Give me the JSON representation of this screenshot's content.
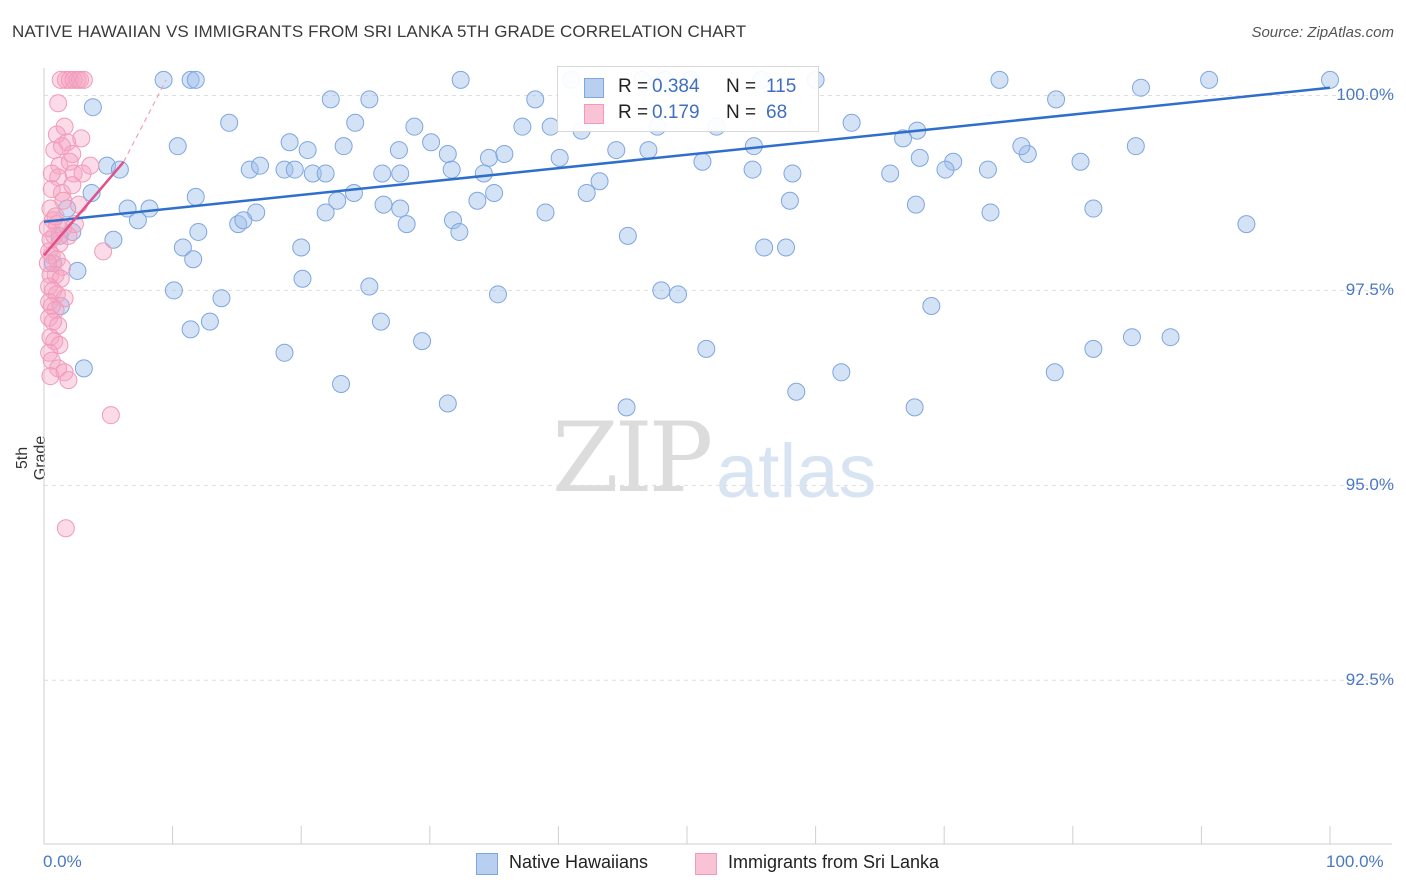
{
  "chart_data": {
    "type": "scatter",
    "title": "NATIVE HAWAIIAN VS IMMIGRANTS FROM SRI LANKA 5TH GRADE CORRELATION CHART",
    "source": "Source: ZipAtlas.com",
    "xlabel": "",
    "ylabel": "5th Grade",
    "xlim": [
      0,
      100
    ],
    "ylim": [
      90.4,
      100.25
    ],
    "y_ticks": [
      {
        "value": 100.0,
        "label": "100.0%"
      },
      {
        "value": 97.5,
        "label": "97.5%"
      },
      {
        "value": 95.0,
        "label": "95.0%"
      },
      {
        "value": 92.5,
        "label": "92.5%"
      }
    ],
    "x_tick_labels": {
      "left": "0.0%",
      "right": "100.0%"
    },
    "grid": true,
    "legend": {
      "position": "top-center",
      "entries": [
        {
          "name": "Native Hawaiians",
          "r_label": "R =",
          "r": "0.384",
          "n_label": "N =",
          "n": "115"
        },
        {
          "name": "Immigrants from Sri Lanka",
          "r_label": "R =",
          "r": "0.179",
          "n_label": "N =",
          "n": "68"
        }
      ]
    },
    "watermark": {
      "zip": "ZIP",
      "atlas": "atlas"
    },
    "series": [
      {
        "name": "Native Hawaiians",
        "color": "#7ea6e0",
        "line_color": "#2f6fcc",
        "trend": {
          "x": [
            0,
            100
          ],
          "y": [
            98.38,
            100.1
          ]
        },
        "points": [
          [
            9.3,
            100.2
          ],
          [
            11.4,
            100.2
          ],
          [
            11.8,
            100.2
          ],
          [
            32.4,
            100.2
          ],
          [
            41.0,
            100.2
          ],
          [
            46.5,
            100.2
          ],
          [
            50.3,
            100.2
          ],
          [
            55.8,
            100.2
          ],
          [
            60.0,
            100.2
          ],
          [
            74.3,
            100.2
          ],
          [
            90.6,
            100.2
          ],
          [
            100.0,
            100.2
          ],
          [
            48.3,
            100.2
          ],
          [
            3.8,
            99.85
          ],
          [
            22.3,
            99.95
          ],
          [
            25.3,
            99.95
          ],
          [
            38.2,
            99.95
          ],
          [
            78.7,
            99.95
          ],
          [
            85.3,
            100.1
          ],
          [
            14.4,
            99.65
          ],
          [
            24.2,
            99.65
          ],
          [
            28.8,
            99.6
          ],
          [
            37.2,
            99.6
          ],
          [
            39.4,
            99.6
          ],
          [
            41.8,
            99.55
          ],
          [
            47.7,
            99.6
          ],
          [
            52.3,
            99.6
          ],
          [
            62.8,
            99.65
          ],
          [
            67.9,
            99.55
          ],
          [
            10.4,
            99.35
          ],
          [
            19.1,
            99.4
          ],
          [
            20.5,
            99.3
          ],
          [
            23.3,
            99.35
          ],
          [
            27.6,
            99.3
          ],
          [
            30.1,
            99.4
          ],
          [
            31.4,
            99.25
          ],
          [
            34.6,
            99.2
          ],
          [
            35.8,
            99.25
          ],
          [
            40.1,
            99.2
          ],
          [
            44.5,
            99.3
          ],
          [
            47.0,
            99.3
          ],
          [
            51.2,
            99.15
          ],
          [
            55.2,
            99.35
          ],
          [
            66.8,
            99.45
          ],
          [
            68.1,
            99.2
          ],
          [
            70.7,
            99.15
          ],
          [
            76.5,
            99.25
          ],
          [
            76.0,
            99.35
          ],
          [
            84.9,
            99.35
          ],
          [
            80.6,
            99.15
          ],
          [
            4.9,
            99.1
          ],
          [
            5.9,
            99.05
          ],
          [
            16.0,
            99.05
          ],
          [
            16.8,
            99.1
          ],
          [
            18.7,
            99.05
          ],
          [
            19.5,
            99.05
          ],
          [
            20.9,
            99.0
          ],
          [
            21.9,
            99.0
          ],
          [
            26.3,
            99.0
          ],
          [
            27.7,
            99.0
          ],
          [
            31.7,
            99.05
          ],
          [
            34.2,
            99.0
          ],
          [
            43.2,
            98.9
          ],
          [
            55.1,
            99.05
          ],
          [
            58.2,
            99.0
          ],
          [
            65.8,
            99.0
          ],
          [
            70.1,
            99.05
          ],
          [
            73.4,
            99.05
          ],
          [
            3.7,
            98.75
          ],
          [
            11.8,
            98.7
          ],
          [
            16.5,
            98.5
          ],
          [
            22.8,
            98.65
          ],
          [
            24.1,
            98.75
          ],
          [
            26.4,
            98.6
          ],
          [
            33.7,
            98.65
          ],
          [
            35.0,
            98.75
          ],
          [
            42.2,
            98.75
          ],
          [
            58.0,
            98.65
          ],
          [
            67.8,
            98.6
          ],
          [
            73.6,
            98.5
          ],
          [
            81.6,
            98.55
          ],
          [
            1.8,
            98.55
          ],
          [
            2.2,
            98.25
          ],
          [
            6.5,
            98.55
          ],
          [
            8.2,
            98.55
          ],
          [
            7.3,
            98.4
          ],
          [
            12.0,
            98.25
          ],
          [
            15.1,
            98.35
          ],
          [
            15.5,
            98.4
          ],
          [
            21.9,
            98.5
          ],
          [
            27.7,
            98.55
          ],
          [
            28.2,
            98.35
          ],
          [
            31.8,
            98.4
          ],
          [
            32.3,
            98.25
          ],
          [
            39.0,
            98.5
          ],
          [
            1.2,
            98.2
          ],
          [
            5.4,
            98.15
          ],
          [
            10.8,
            98.05
          ],
          [
            11.6,
            97.9
          ],
          [
            20.0,
            98.05
          ],
          [
            45.4,
            98.2
          ],
          [
            56.0,
            98.05
          ],
          [
            57.7,
            98.05
          ],
          [
            0.7,
            97.85
          ],
          [
            2.6,
            97.75
          ],
          [
            10.1,
            97.5
          ],
          [
            20.1,
            97.65
          ],
          [
            25.3,
            97.55
          ],
          [
            35.3,
            97.45
          ],
          [
            48.0,
            97.5
          ],
          [
            49.3,
            97.45
          ],
          [
            69.0,
            97.3
          ],
          [
            93.5,
            98.35
          ],
          [
            1.3,
            97.3
          ],
          [
            13.8,
            97.4
          ],
          [
            11.4,
            97.0
          ],
          [
            12.9,
            97.1
          ],
          [
            26.2,
            97.1
          ],
          [
            29.4,
            96.85
          ],
          [
            51.5,
            96.75
          ],
          [
            81.6,
            96.75
          ],
          [
            67.7,
            96.0
          ],
          [
            3.1,
            96.5
          ],
          [
            23.1,
            96.3
          ],
          [
            31.4,
            96.05
          ],
          [
            58.5,
            96.2
          ],
          [
            78.6,
            96.45
          ],
          [
            62.0,
            96.45
          ],
          [
            18.7,
            96.7
          ],
          [
            87.6,
            96.9
          ],
          [
            84.6,
            96.9
          ],
          [
            45.3,
            96.0
          ]
        ]
      },
      {
        "name": "Immigrants from Sri Lanka",
        "color": "#f29ab8",
        "line_color": "#e0508a",
        "trend": {
          "x": [
            0,
            6.2
          ],
          "y": [
            97.95,
            99.15
          ]
        },
        "trend_ext": {
          "x": [
            6.2,
            9.5
          ],
          "y": [
            99.15,
            100.2
          ]
        },
        "points": [
          [
            1.3,
            100.2
          ],
          [
            1.7,
            100.2
          ],
          [
            2.0,
            100.2
          ],
          [
            2.3,
            100.2
          ],
          [
            2.6,
            100.2
          ],
          [
            2.8,
            100.2
          ],
          [
            3.1,
            100.2
          ],
          [
            1.1,
            99.9
          ],
          [
            1.0,
            99.5
          ],
          [
            1.8,
            99.4
          ],
          [
            2.9,
            99.45
          ],
          [
            0.8,
            99.3
          ],
          [
            1.4,
            99.35
          ],
          [
            2.2,
            99.25
          ],
          [
            1.2,
            99.1
          ],
          [
            2.0,
            99.15
          ],
          [
            1.1,
            98.95
          ],
          [
            2.3,
            99.0
          ],
          [
            0.6,
            98.8
          ],
          [
            1.4,
            98.75
          ],
          [
            2.7,
            98.6
          ],
          [
            0.7,
            98.4
          ],
          [
            1.0,
            98.35
          ],
          [
            1.5,
            98.3
          ],
          [
            2.4,
            98.35
          ],
          [
            0.5,
            98.15
          ],
          [
            0.8,
            98.2
          ],
          [
            1.2,
            98.1
          ],
          [
            1.9,
            98.2
          ],
          [
            4.6,
            98.0
          ],
          [
            0.4,
            98.0
          ],
          [
            0.6,
            97.95
          ],
          [
            1.0,
            97.9
          ],
          [
            1.4,
            97.8
          ],
          [
            0.5,
            97.7
          ],
          [
            0.9,
            97.7
          ],
          [
            1.3,
            97.65
          ],
          [
            0.4,
            97.55
          ],
          [
            0.7,
            97.5
          ],
          [
            1.0,
            97.45
          ],
          [
            1.6,
            97.4
          ],
          [
            0.4,
            97.35
          ],
          [
            0.6,
            97.3
          ],
          [
            0.9,
            97.25
          ],
          [
            0.4,
            97.15
          ],
          [
            0.7,
            97.1
          ],
          [
            1.1,
            97.05
          ],
          [
            0.5,
            96.9
          ],
          [
            0.8,
            96.85
          ],
          [
            1.2,
            96.8
          ],
          [
            0.4,
            96.7
          ],
          [
            0.6,
            96.6
          ],
          [
            1.1,
            96.5
          ],
          [
            1.6,
            96.45
          ],
          [
            1.9,
            96.35
          ],
          [
            0.5,
            96.4
          ],
          [
            5.2,
            95.9
          ],
          [
            1.7,
            94.45
          ],
          [
            0.3,
            97.85
          ],
          [
            0.3,
            98.3
          ],
          [
            0.5,
            98.55
          ],
          [
            0.9,
            98.45
          ],
          [
            1.5,
            98.65
          ],
          [
            2.2,
            98.85
          ],
          [
            3.0,
            99.0
          ],
          [
            3.6,
            99.1
          ],
          [
            0.6,
            99.0
          ],
          [
            1.6,
            99.6
          ]
        ]
      }
    ]
  }
}
